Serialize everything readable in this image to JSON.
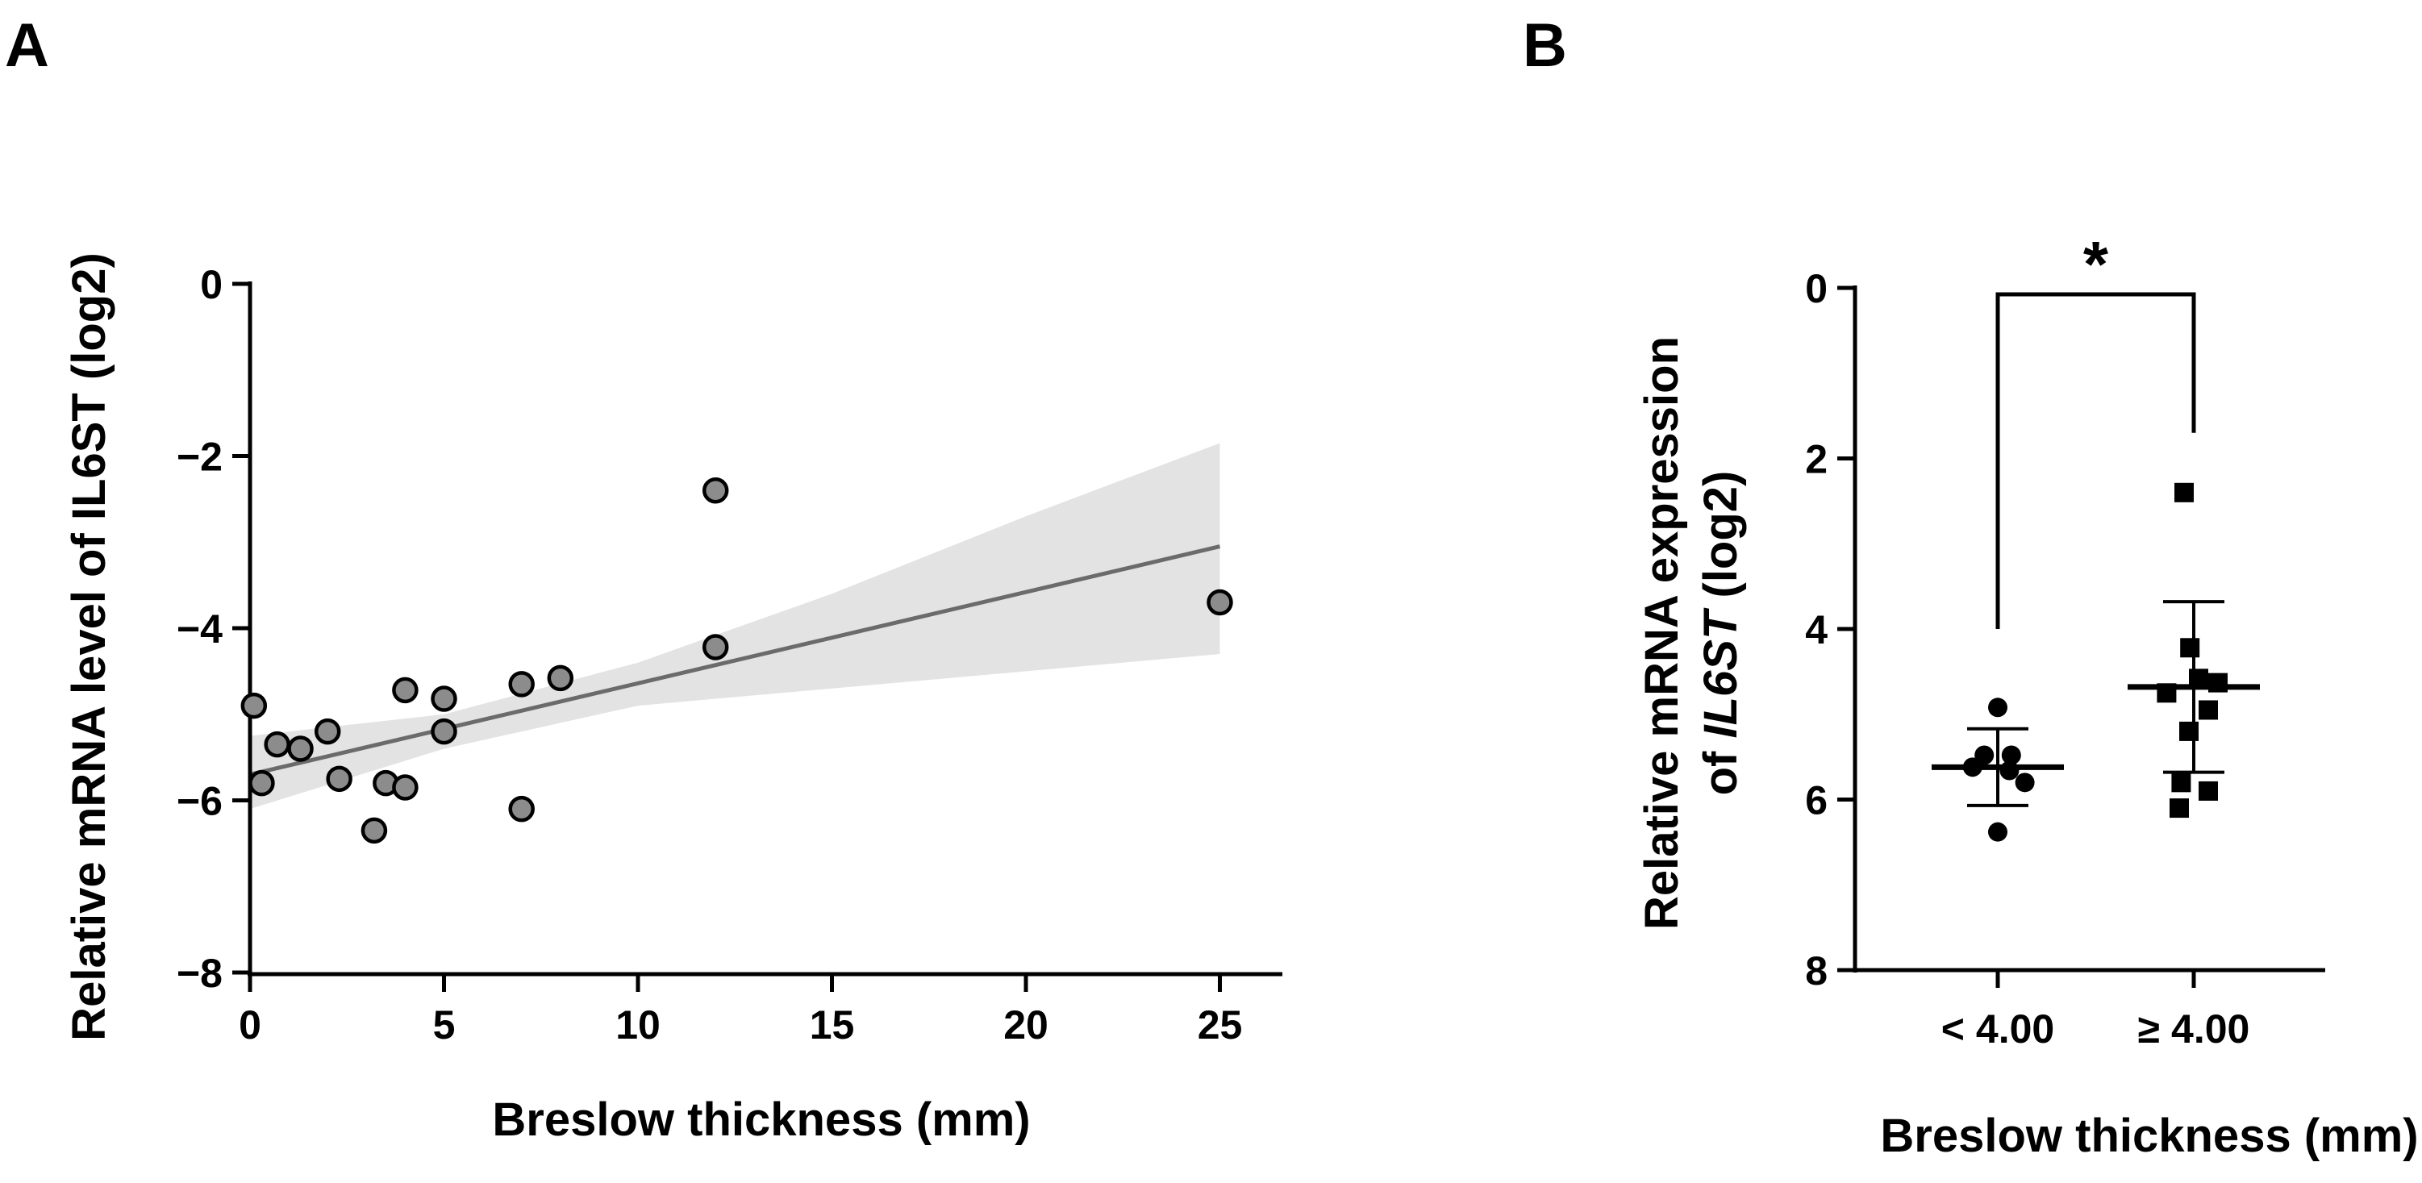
{
  "panels": {
    "a_letter": "A",
    "b_letter": "B"
  },
  "colors": {
    "axis": "#000000",
    "point_fill_a": "#8c8c8c",
    "regression_line": "#6b6b6b",
    "confidence_band": "#e3e3e3",
    "points_b": "#000000"
  },
  "chart_data": [
    {
      "id": "A",
      "type": "scatter",
      "title": "",
      "xlabel": "Breslow thickness (mm)",
      "ylabel": "Relative mRNA level of IL6ST (log2)",
      "xlim": [
        0,
        26
      ],
      "ylim": [
        -8,
        0
      ],
      "xticks": [
        0,
        5,
        10,
        15,
        20,
        25
      ],
      "yticks": [
        0,
        -2,
        -4,
        -6,
        -8
      ],
      "ytick_labels": [
        "0",
        "−2",
        "−4",
        "−6",
        "−8"
      ],
      "points": [
        {
          "x": 0.1,
          "y": -4.9
        },
        {
          "x": 0.3,
          "y": -5.8
        },
        {
          "x": 0.7,
          "y": -5.35
        },
        {
          "x": 1.3,
          "y": -5.4
        },
        {
          "x": 2.0,
          "y": -5.2
        },
        {
          "x": 2.3,
          "y": -5.75
        },
        {
          "x": 3.2,
          "y": -6.35
        },
        {
          "x": 3.5,
          "y": -5.8
        },
        {
          "x": 4.0,
          "y": -4.72
        },
        {
          "x": 4.0,
          "y": -5.85
        },
        {
          "x": 5.0,
          "y": -4.82
        },
        {
          "x": 5.0,
          "y": -5.2
        },
        {
          "x": 7.0,
          "y": -4.65
        },
        {
          "x": 7.0,
          "y": -6.1
        },
        {
          "x": 8.0,
          "y": -4.58
        },
        {
          "x": 12.0,
          "y": -2.4
        },
        {
          "x": 12.0,
          "y": -4.22
        },
        {
          "x": 25.0,
          "y": -3.7
        }
      ],
      "regression": {
        "x": [
          0,
          25
        ],
        "y": [
          -5.7,
          -3.05
        ]
      },
      "ci_band": {
        "x": [
          0,
          5,
          10,
          15,
          20,
          25
        ],
        "upper": [
          -5.25,
          -5.0,
          -4.4,
          -3.6,
          -2.7,
          -1.85
        ],
        "lower": [
          -6.1,
          -5.4,
          -4.9,
          -4.7,
          -4.5,
          -4.3
        ]
      }
    },
    {
      "id": "B",
      "type": "scatter",
      "title": "",
      "xlabel": "Breslow thickness (mm)",
      "ylabel_line1": "Relative mRNA expression",
      "ylabel_line2_prefix": "of ",
      "ylabel_line2_gene": "IL6ST",
      "ylabel_line2_suffix": " (log2)",
      "ylim": [
        0,
        8
      ],
      "y_inverted": true,
      "yticks": [
        0,
        2,
        4,
        6,
        8
      ],
      "categories": [
        "< 4.00",
        "≥ 4.00"
      ],
      "groups": [
        {
          "name": "< 4.00",
          "marker": "circle",
          "mean": 5.62,
          "sd": 0.45,
          "points": [
            {
              "dx": 0.0,
              "y": 4.92
            },
            {
              "dx": -0.14,
              "y": 5.48
            },
            {
              "dx": 0.14,
              "y": 5.48
            },
            {
              "dx": -0.26,
              "y": 5.62
            },
            {
              "dx": 0.12,
              "y": 5.66
            },
            {
              "dx": 0.28,
              "y": 5.8
            },
            {
              "dx": 0.0,
              "y": 6.38
            }
          ]
        },
        {
          "name": "≥ 4.00",
          "marker": "square",
          "mean": 4.68,
          "sd": 1.0,
          "points": [
            {
              "dx": -0.1,
              "y": 2.4
            },
            {
              "dx": -0.04,
              "y": 4.22
            },
            {
              "dx": -0.28,
              "y": 4.75
            },
            {
              "dx": 0.05,
              "y": 4.58
            },
            {
              "dx": 0.25,
              "y": 4.63
            },
            {
              "dx": 0.15,
              "y": 4.95
            },
            {
              "dx": -0.05,
              "y": 5.2
            },
            {
              "dx": -0.13,
              "y": 5.8
            },
            {
              "dx": 0.15,
              "y": 5.9
            },
            {
              "dx": -0.15,
              "y": 6.1
            }
          ]
        }
      ],
      "significance": {
        "label": "*",
        "bracket_top": 0.0,
        "left_drop_to": 4.0,
        "right_drop_to": 1.7
      }
    }
  ]
}
